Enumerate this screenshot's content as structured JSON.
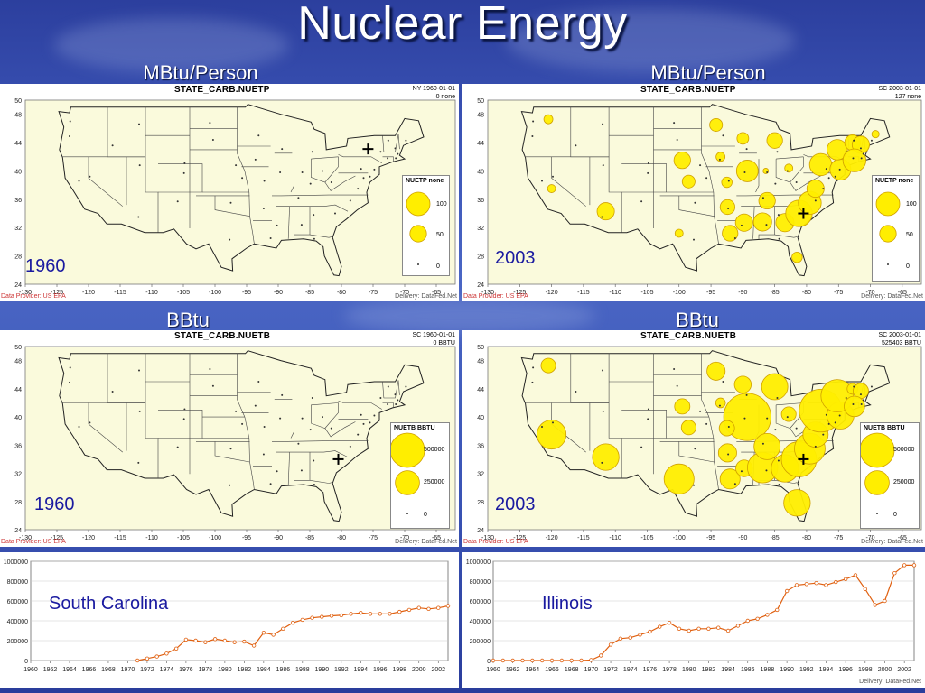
{
  "title": "Nuclear Energy",
  "colors": {
    "bubble_fill": "#ffee00",
    "bubble_stroke": "#d0a000",
    "map_bg": "#fafadc",
    "line": "#e06010"
  },
  "sections": {
    "top_left": "MBtu/Person",
    "top_right": "MBtu/Person",
    "mid_left": "BBtu",
    "mid_right": "BBtu"
  },
  "panels": [
    {
      "id": "p1",
      "title": "STATE_CARB.NUETP",
      "meta1": "NY 1960-01-01",
      "meta2": "0 none",
      "year": "1960",
      "legend_title": "NUETP none",
      "legend_values": [
        "100",
        "50",
        "0"
      ],
      "provider": "Data Provider: US EPA",
      "delivery": "Delivery: DataFed.Net"
    },
    {
      "id": "p2",
      "title": "STATE_CARB.NUETP",
      "meta1": "SC 2003-01-01",
      "meta2": "127 none",
      "year": "2003",
      "legend_title": "NUETP none",
      "legend_values": [
        "100",
        "50",
        "0"
      ],
      "provider": "Data Provider: US EPA",
      "delivery": "Delivery: DataFed.Net"
    },
    {
      "id": "p3",
      "title": "STATE_CARB.NUETB",
      "meta1": "SC 1960-01-01",
      "meta2": "0 BBTU",
      "year": "1960",
      "legend_title": "NUETB BBTU",
      "legend_values": [
        "500000",
        "250000",
        "0"
      ],
      "provider": "Data Provider: US EPA",
      "delivery": "Delivery: DataFed.Net"
    },
    {
      "id": "p4",
      "title": "STATE_CARB.NUETB",
      "meta1": "SC 2003-01-01",
      "meta2": "525403 BBTU",
      "year": "2003",
      "legend_title": "NUETB BBTU",
      "legend_values": [
        "500000",
        "250000",
        "0"
      ],
      "provider": "Data Provider: US EPA",
      "delivery": "Delivery: DataFed.Net"
    }
  ],
  "map_axes": {
    "lon_ticks": [
      "-130",
      "-125",
      "-120",
      "-115",
      "-110",
      "-105",
      "-100",
      "-95",
      "-90",
      "-85",
      "-80",
      "-75",
      "-70",
      "-65"
    ],
    "lat_ticks": [
      "50",
      "48",
      "44",
      "40",
      "36",
      "32",
      "28",
      "24"
    ]
  },
  "line_charts": {
    "delivery": "Delivery: DataFed.Net"
  },
  "chart_data": [
    {
      "type": "scatter",
      "title": "STATE_CARB.NUETP",
      "subtitle": "1960",
      "ylabel": "",
      "xlabel": "",
      "xlim": [
        -130,
        -62
      ],
      "ylim": [
        24,
        50
      ],
      "series": [
        {
          "points": []
        }
      ]
    },
    {
      "type": "scatter",
      "title": "STATE_CARB.NUETP",
      "subtitle": "2003",
      "ylabel": "",
      "xlabel": "",
      "xlim": [
        -130,
        -62
      ],
      "ylim": [
        24,
        50
      ],
      "series": [
        {
          "points": [
            [
              -120.5,
              47.3,
              15
            ],
            [
              -120.0,
              37.5,
              12
            ],
            [
              -111.5,
              34.3,
              55
            ],
            [
              -100.0,
              31.2,
              12
            ],
            [
              -98.5,
              38.5,
              30
            ],
            [
              -99.5,
              41.5,
              50
            ],
            [
              -94.2,
              46.5,
              30
            ],
            [
              -90.0,
              44.6,
              25
            ],
            [
              -93.5,
              42.0,
              15
            ],
            [
              -89.3,
              40.0,
              85
            ],
            [
              -92.5,
              38.4,
              20
            ],
            [
              -86.4,
              40.0,
              5
            ],
            [
              -85.0,
              44.3,
              45
            ],
            [
              -82.8,
              40.4,
              12
            ],
            [
              -92.4,
              34.9,
              40
            ],
            [
              -92.0,
              31.2,
              45
            ],
            [
              -89.8,
              32.7,
              55
            ],
            [
              -86.9,
              32.8,
              60
            ],
            [
              -83.4,
              32.7,
              60
            ],
            [
              -81.2,
              34.0,
              127
            ],
            [
              -79.5,
              35.5,
              95
            ],
            [
              -78.6,
              37.5,
              55
            ],
            [
              -86.2,
              35.8,
              50
            ],
            [
              -81.5,
              27.8,
              20
            ],
            [
              -77.8,
              40.9,
              90
            ],
            [
              -74.7,
              40.2,
              80
            ],
            [
              -75.2,
              43.0,
              75
            ],
            [
              -72.8,
              44.0,
              45
            ],
            [
              -71.5,
              43.7,
              55
            ],
            [
              -72.5,
              41.5,
              95
            ],
            [
              -69.2,
              45.2,
              10
            ]
          ]
        }
      ]
    },
    {
      "type": "scatter",
      "title": "STATE_CARB.NUETB",
      "subtitle": "1960",
      "ylabel": "",
      "xlabel": "",
      "xlim": [
        -130,
        -62
      ],
      "ylim": [
        24,
        50
      ],
      "series": [
        {
          "points": []
        }
      ]
    },
    {
      "type": "scatter",
      "title": "STATE_CARB.NUETB",
      "subtitle": "2003",
      "ylabel": "",
      "xlabel": "",
      "xlim": [
        -130,
        -62
      ],
      "ylim": [
        24,
        50
      ],
      "series": [
        {
          "points": [
            [
              -120.5,
              47.3,
              90000
            ],
            [
              -120.0,
              37.5,
              360000
            ],
            [
              -111.5,
              34.3,
              300000
            ],
            [
              -100.0,
              31.2,
              380000
            ],
            [
              -98.5,
              38.5,
              90000
            ],
            [
              -99.5,
              41.5,
              100000
            ],
            [
              -94.2,
              46.5,
              140000
            ],
            [
              -90.0,
              44.6,
              120000
            ],
            [
              -93.5,
              42.0,
              40000
            ],
            [
              -89.3,
              40.0,
              950000
            ],
            [
              -92.5,
              38.4,
              100000
            ],
            [
              -85.0,
              44.3,
              290000
            ],
            [
              -82.8,
              40.4,
              90000
            ],
            [
              -92.4,
              34.9,
              140000
            ],
            [
              -92.0,
              31.2,
              170000
            ],
            [
              -89.8,
              32.7,
              120000
            ],
            [
              -86.9,
              32.8,
              390000
            ],
            [
              -83.4,
              32.7,
              320000
            ],
            [
              -81.2,
              34.0,
              525403
            ],
            [
              -79.5,
              35.5,
              400000
            ],
            [
              -78.6,
              37.5,
              270000
            ],
            [
              -86.2,
              35.8,
              290000
            ],
            [
              -81.5,
              27.8,
              300000
            ],
            [
              -77.8,
              40.9,
              780000
            ],
            [
              -74.7,
              40.2,
              310000
            ],
            [
              -75.2,
              43.0,
              450000
            ],
            [
              -72.8,
              44.0,
              50000
            ],
            [
              -71.5,
              43.7,
              100000
            ],
            [
              -72.5,
              41.5,
              180000
            ]
          ]
        }
      ]
    },
    {
      "type": "line",
      "title": "",
      "subtitle": "South Carolina",
      "xlabel": "",
      "ylabel": "",
      "xlim": [
        1960,
        2003
      ],
      "ylim": [
        0,
        1000000
      ],
      "x_ticks": [
        "1960",
        "1962",
        "1964",
        "1966",
        "1968",
        "1970",
        "1972",
        "1974",
        "1976",
        "1978",
        "1980",
        "1982",
        "1984",
        "1986",
        "1988",
        "1990",
        "1992",
        "1994",
        "1996",
        "1998",
        "2000",
        "2002"
      ],
      "y_ticks": [
        "0",
        "200000",
        "400000",
        "600000",
        "800000",
        "1000000"
      ],
      "x": [
        1971,
        1972,
        1973,
        1974,
        1975,
        1976,
        1977,
        1978,
        1979,
        1980,
        1981,
        1982,
        1983,
        1984,
        1985,
        1986,
        1987,
        1988,
        1989,
        1990,
        1991,
        1992,
        1993,
        1994,
        1995,
        1996,
        1997,
        1998,
        1999,
        2000,
        2001,
        2002,
        2003
      ],
      "values": [
        0,
        20000,
        40000,
        70000,
        120000,
        210000,
        200000,
        185000,
        215000,
        200000,
        185000,
        190000,
        150000,
        280000,
        260000,
        320000,
        380000,
        410000,
        430000,
        440000,
        450000,
        455000,
        470000,
        480000,
        470000,
        470000,
        470000,
        490000,
        510000,
        530000,
        520000,
        530000,
        550000
      ]
    },
    {
      "type": "line",
      "title": "",
      "subtitle": "Illinois",
      "xlabel": "",
      "ylabel": "",
      "xlim": [
        1960,
        2003
      ],
      "ylim": [
        0,
        1000000
      ],
      "x_ticks": [
        "1960",
        "1962",
        "1964",
        "1966",
        "1968",
        "1970",
        "1972",
        "1974",
        "1976",
        "1978",
        "1980",
        "1982",
        "1984",
        "1986",
        "1988",
        "1990",
        "1992",
        "1994",
        "1996",
        "1998",
        "2000",
        "2002"
      ],
      "y_ticks": [
        "0",
        "200000",
        "400000",
        "600000",
        "800000",
        "1000000"
      ],
      "x": [
        1960,
        1961,
        1962,
        1963,
        1964,
        1965,
        1966,
        1967,
        1968,
        1969,
        1970,
        1971,
        1972,
        1973,
        1974,
        1975,
        1976,
        1977,
        1978,
        1979,
        1980,
        1981,
        1982,
        1983,
        1984,
        1985,
        1986,
        1987,
        1988,
        1989,
        1990,
        1991,
        1992,
        1993,
        1994,
        1995,
        1996,
        1997,
        1998,
        1999,
        2000,
        2001,
        2002,
        2003
      ],
      "values": [
        0,
        0,
        0,
        0,
        0,
        0,
        0,
        0,
        0,
        0,
        5000,
        50000,
        160000,
        220000,
        230000,
        260000,
        290000,
        340000,
        380000,
        320000,
        300000,
        320000,
        320000,
        330000,
        300000,
        350000,
        400000,
        420000,
        460000,
        510000,
        700000,
        760000,
        770000,
        780000,
        760000,
        790000,
        820000,
        860000,
        720000,
        560000,
        600000,
        880000,
        960000,
        960000
      ]
    }
  ]
}
